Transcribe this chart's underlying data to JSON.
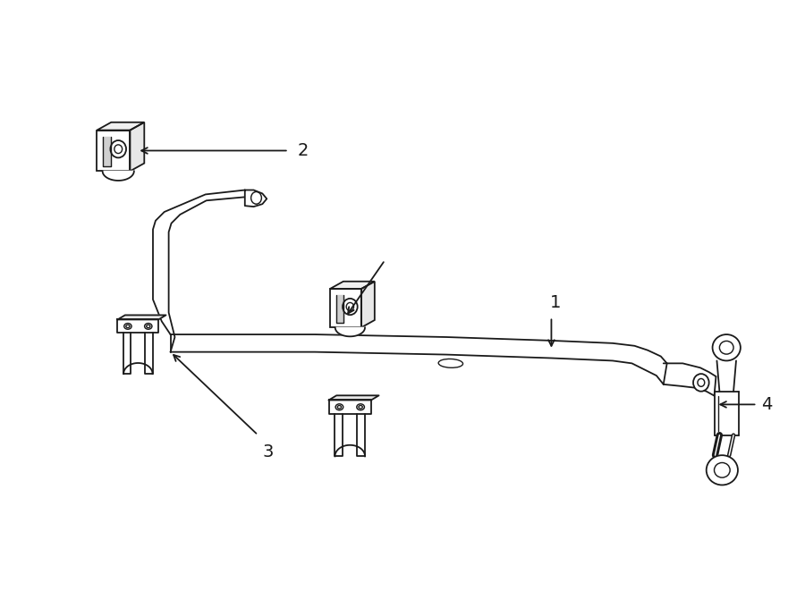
{
  "background_color": "#ffffff",
  "line_color": "#1a1a1a",
  "figsize": [
    9.0,
    6.61
  ],
  "dpi": 100,
  "bar_color": "#ffffff",
  "lw_bar": 2.5,
  "lw_detail": 1.3,
  "lw_thin": 1.0
}
